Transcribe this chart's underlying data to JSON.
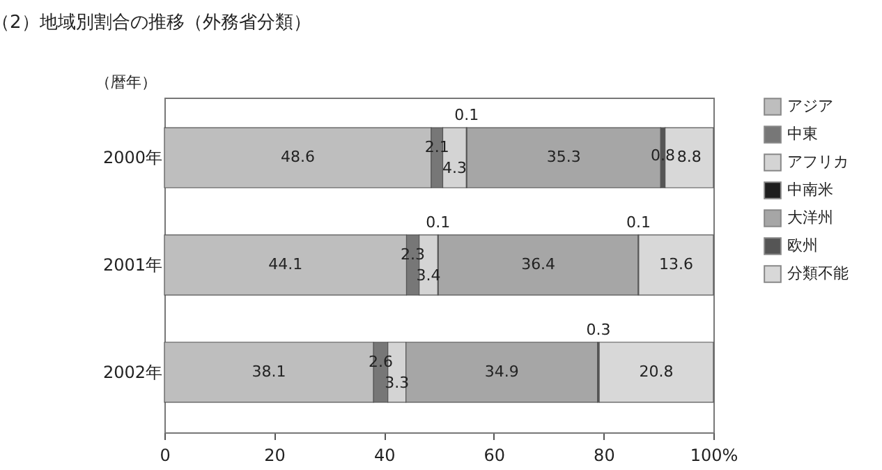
{
  "chart_data": {
    "type": "bar",
    "orientation": "horizontal",
    "stacked": true,
    "title": "（2）地域別割合の推移（外務省分類）",
    "ylabel": "（暦年）",
    "categories": [
      "2000年",
      "2001年",
      "2002年"
    ],
    "series": [
      {
        "name": "アジア",
        "color": "#bebebe",
        "values": [
          48.6,
          44.1,
          38.1
        ]
      },
      {
        "name": "中東",
        "color": "#777777",
        "values": [
          2.1,
          2.3,
          2.6
        ]
      },
      {
        "name": "アフリカ",
        "color": "#d4d4d4",
        "values": [
          4.3,
          3.4,
          3.3
        ]
      },
      {
        "name": "中南米",
        "color": "#1e1e1e",
        "values": [
          0.1,
          0.1,
          null
        ]
      },
      {
        "name": "大洋州",
        "color": "#a6a6a6",
        "values": [
          35.3,
          36.4,
          34.9
        ]
      },
      {
        "name": "欧州",
        "color": "#555555",
        "values": [
          0.8,
          0.1,
          0.3
        ]
      },
      {
        "name": "分類不能",
        "color": "#d8d8d8",
        "values": [
          8.8,
          13.6,
          20.8
        ]
      }
    ],
    "xlim": [
      0,
      100
    ],
    "xticks": [
      0,
      20,
      40,
      60,
      80,
      {
        "value": 100,
        "label": "100%"
      }
    ],
    "data_labels": true,
    "grid": false,
    "legend": "top right"
  }
}
